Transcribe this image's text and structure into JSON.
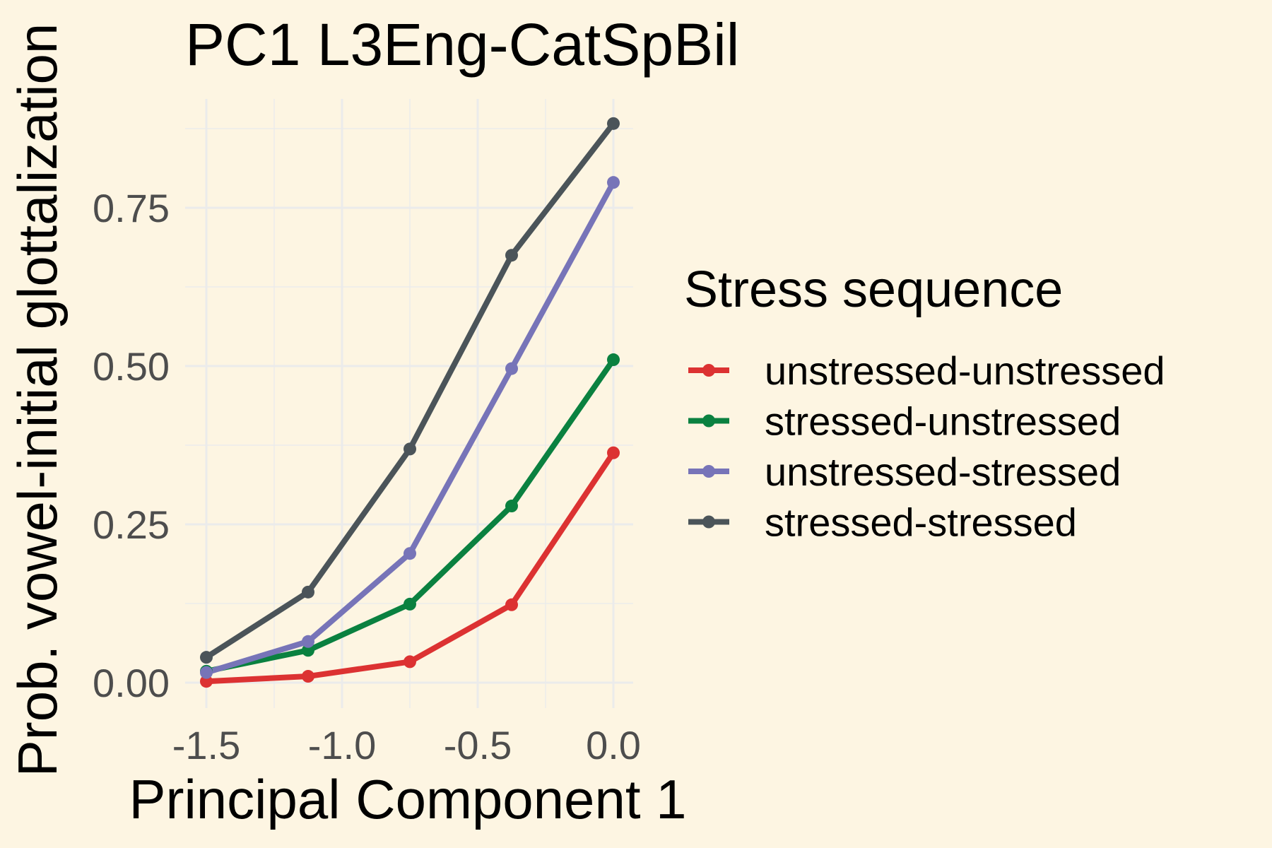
{
  "chart_data": {
    "type": "line",
    "title": "PC1 L3Eng-CatSpBil",
    "xlabel": "Principal Component 1",
    "ylabel": "Prob. vowel-initial glottalization",
    "xlim": [
      -1.5,
      0.0
    ],
    "ylim": [
      0.0,
      0.875
    ],
    "x_ticks": [
      -1.5,
      -1.0,
      -0.5,
      0.0
    ],
    "x_tick_labels": [
      "-1.5",
      "-1.0",
      "-0.5",
      "0.0"
    ],
    "y_ticks": [
      0.0,
      0.25,
      0.5,
      0.75
    ],
    "y_tick_labels": [
      "0.00",
      "0.25",
      "0.50",
      "0.75"
    ],
    "x": [
      -1.5,
      -1.125,
      -0.75,
      -0.375,
      0.0
    ],
    "grid": true,
    "legend_title": "Stress sequence",
    "legend_position": "right",
    "series": [
      {
        "name": "unstressed-unstressed",
        "color": "#dc3232",
        "values": [
          0.002,
          0.01,
          0.033,
          0.123,
          0.363
        ]
      },
      {
        "name": "stressed-unstressed",
        "color": "#0a8140",
        "values": [
          0.018,
          0.051,
          0.124,
          0.279,
          0.51
        ]
      },
      {
        "name": "unstressed-stressed",
        "color": "#7774b8",
        "values": [
          0.016,
          0.065,
          0.204,
          0.496,
          0.79
        ]
      },
      {
        "name": "stressed-stressed",
        "color": "#4b5459",
        "values": [
          0.04,
          0.143,
          0.369,
          0.675,
          0.883
        ]
      }
    ]
  }
}
